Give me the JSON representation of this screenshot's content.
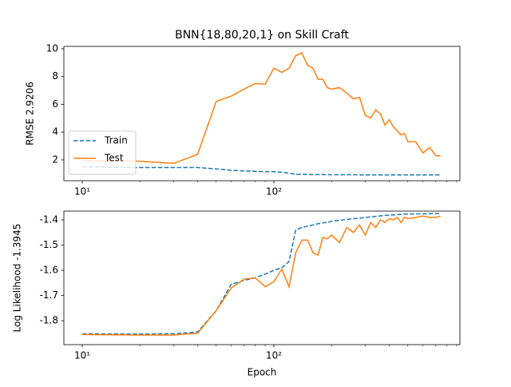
{
  "chart_data": [
    {
      "type": "line",
      "title": "BNN{18,80,20,1} on Skill Craft",
      "y_label": "RMSE 2.9206",
      "x_scale": "log",
      "legend": "lower left",
      "x": [
        10,
        20,
        30,
        40,
        50,
        60,
        70,
        80,
        90,
        100,
        110,
        120,
        130,
        140,
        150,
        160,
        170,
        180,
        190,
        200,
        220,
        240,
        260,
        280,
        300,
        320,
        340,
        360,
        380,
        400,
        420,
        440,
        460,
        480,
        500,
        550,
        600,
        650,
        700,
        740
      ],
      "xlim": [
        8.02,
        935
      ],
      "xticks": [
        {
          "value": 10,
          "label": "10¹"
        },
        {
          "value": 100,
          "label": "10²"
        }
      ],
      "xminorticks": [
        20,
        30,
        40,
        50,
        60,
        70,
        80,
        90,
        200,
        300,
        400,
        500,
        600,
        700,
        800,
        900
      ],
      "ylim": [
        0.5,
        10.17
      ],
      "yticks": [
        2,
        4,
        6,
        8,
        10
      ],
      "series": [
        {
          "name": "Train",
          "color": "#1f77b4",
          "linestyle": "dashed",
          "values": [
            1.5,
            1.45,
            1.45,
            1.45,
            1.35,
            1.25,
            1.2,
            1.18,
            1.15,
            1.15,
            1.12,
            1.05,
            0.95,
            0.95,
            0.95,
            0.94,
            0.94,
            0.94,
            0.93,
            0.93,
            0.93,
            0.93,
            0.93,
            0.92,
            0.92,
            0.92,
            0.92,
            0.92,
            0.92,
            0.92,
            0.92,
            0.92,
            0.92,
            0.92,
            0.92,
            0.92,
            0.92,
            0.92,
            0.92,
            0.92
          ]
        },
        {
          "name": "Test",
          "color": "#ff7f0e",
          "linestyle": "solid",
          "values": [
            1.95,
            1.9,
            1.75,
            2.4,
            6.2,
            6.6,
            7.1,
            7.5,
            7.45,
            8.6,
            8.3,
            8.6,
            9.5,
            9.7,
            8.8,
            8.6,
            7.8,
            7.8,
            7.2,
            7.1,
            7.2,
            6.8,
            6.4,
            6.5,
            5.2,
            5.0,
            5.6,
            5.3,
            4.5,
            4.9,
            4.4,
            4.1,
            3.8,
            3.9,
            3.3,
            3.3,
            2.5,
            2.9,
            2.3,
            2.3
          ]
        }
      ]
    },
    {
      "type": "line",
      "y_label": "Log Likelihood -1.3945",
      "x_label": "Epoch",
      "x_scale": "log",
      "x": [
        10,
        20,
        30,
        40,
        50,
        60,
        70,
        80,
        90,
        100,
        110,
        120,
        130,
        140,
        150,
        160,
        170,
        180,
        190,
        200,
        220,
        240,
        260,
        280,
        300,
        320,
        340,
        360,
        380,
        400,
        420,
        440,
        460,
        480,
        500,
        550,
        600,
        650,
        700,
        740
      ],
      "xlim": [
        8.02,
        935
      ],
      "xticks": [
        {
          "value": 10,
          "label": "10¹"
        },
        {
          "value": 100,
          "label": "10²"
        }
      ],
      "xminorticks": [
        20,
        30,
        40,
        50,
        60,
        70,
        80,
        90,
        200,
        300,
        400,
        500,
        600,
        700,
        800,
        900
      ],
      "ylim": [
        -1.895,
        -1.365
      ],
      "yticks": [
        -1.8,
        -1.7,
        -1.6,
        -1.5,
        -1.4
      ],
      "series": [
        {
          "name": "Train",
          "color": "#1f77b4",
          "linestyle": "dashed",
          "values": [
            -1.852,
            -1.853,
            -1.852,
            -1.845,
            -1.76,
            -1.655,
            -1.64,
            -1.63,
            -1.615,
            -1.6,
            -1.59,
            -1.565,
            -1.44,
            -1.43,
            -1.425,
            -1.42,
            -1.415,
            -1.412,
            -1.41,
            -1.405,
            -1.402,
            -1.398,
            -1.395,
            -1.393,
            -1.39,
            -1.388,
            -1.386,
            -1.384,
            -1.382,
            -1.381,
            -1.38,
            -1.379,
            -1.378,
            -1.377,
            -1.377,
            -1.376,
            -1.376,
            -1.375,
            -1.375,
            -1.375
          ]
        },
        {
          "name": "Test",
          "color": "#ff7f0e",
          "linestyle": "solid",
          "values": [
            -1.855,
            -1.857,
            -1.857,
            -1.85,
            -1.76,
            -1.67,
            -1.635,
            -1.63,
            -1.665,
            -1.645,
            -1.595,
            -1.665,
            -1.53,
            -1.48,
            -1.48,
            -1.53,
            -1.54,
            -1.47,
            -1.475,
            -1.46,
            -1.49,
            -1.43,
            -1.45,
            -1.42,
            -1.46,
            -1.41,
            -1.43,
            -1.4,
            -1.41,
            -1.395,
            -1.4,
            -1.39,
            -1.41,
            -1.39,
            -1.395,
            -1.39,
            -1.385,
            -1.39,
            -1.39,
            -1.385
          ]
        }
      ]
    }
  ]
}
